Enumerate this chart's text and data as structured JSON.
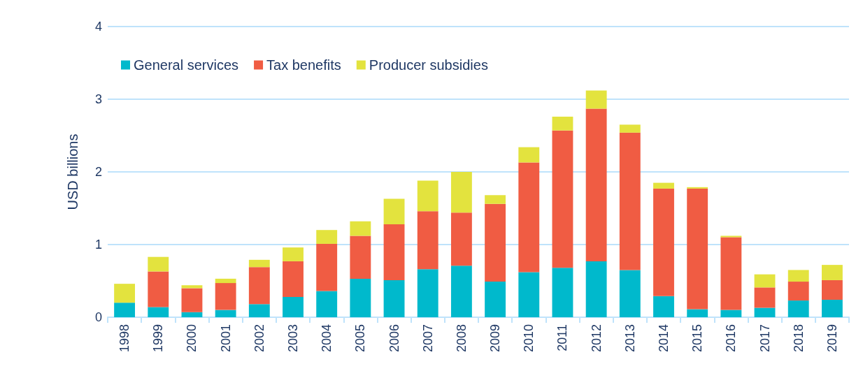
{
  "chart_data": {
    "type": "bar",
    "stacked": true,
    "ylabel": "USD billions",
    "categories": [
      "1998",
      "1999",
      "2000",
      "2001",
      "2002",
      "2003",
      "2004",
      "2005",
      "2006",
      "2007",
      "2008",
      "2009",
      "2010",
      "2011",
      "2012",
      "2013",
      "2014",
      "2015",
      "2016",
      "2017",
      "2018",
      "2019"
    ],
    "series": [
      {
        "name": "General services",
        "color": "#00b9cc",
        "values": [
          0.2,
          0.14,
          0.07,
          0.1,
          0.18,
          0.28,
          0.36,
          0.53,
          0.51,
          0.66,
          0.71,
          0.49,
          0.62,
          0.68,
          0.77,
          0.65,
          0.29,
          0.11,
          0.1,
          0.13,
          0.23,
          0.24
        ]
      },
      {
        "name": "Tax benefits",
        "color": "#f05c43",
        "values": [
          0,
          0.49,
          0.33,
          0.37,
          0.51,
          0.49,
          0.65,
          0.59,
          0.77,
          0.8,
          0.73,
          1.07,
          1.51,
          1.89,
          2.1,
          1.89,
          1.48,
          1.66,
          1.0,
          0.28,
          0.26,
          0.27
        ]
      },
      {
        "name": "Producer subsidies",
        "color": "#e3e33e",
        "values": [
          0.26,
          0.2,
          0.04,
          0.06,
          0.1,
          0.19,
          0.19,
          0.2,
          0.35,
          0.42,
          0.56,
          0.12,
          0.21,
          0.19,
          0.25,
          0.11,
          0.08,
          0.02,
          0.02,
          0.18,
          0.16,
          0.21
        ]
      }
    ],
    "ylim": [
      0,
      4
    ],
    "yticks": [
      0,
      1,
      2,
      3,
      4
    ],
    "grid": "y",
    "legend": "top left"
  }
}
